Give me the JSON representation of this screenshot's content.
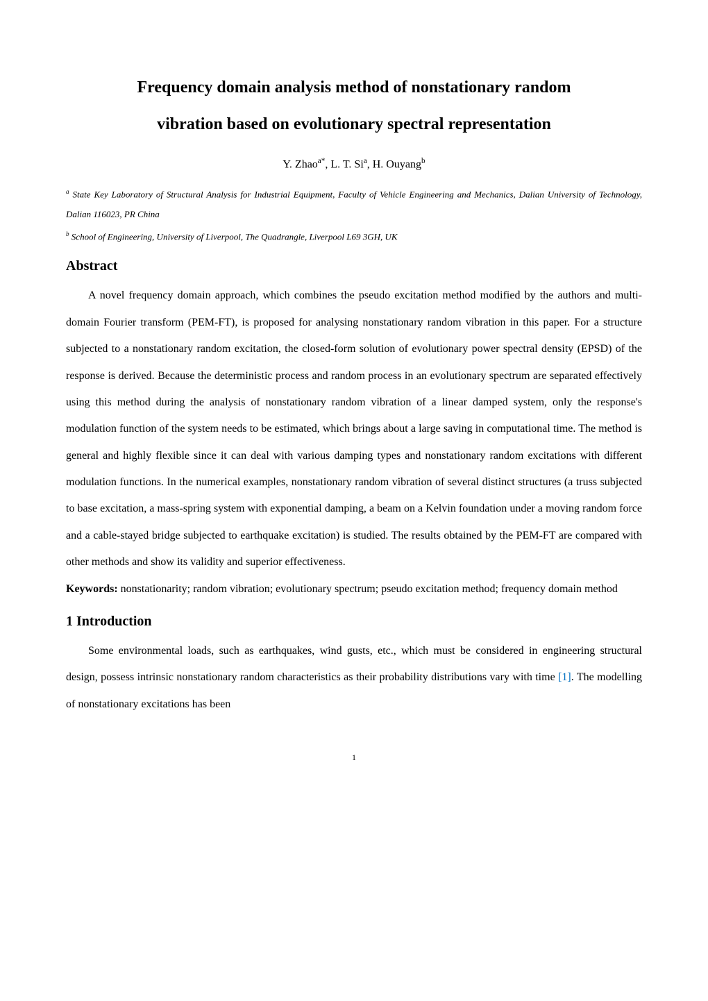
{
  "title": {
    "line1": "Frequency domain analysis method of nonstationary random",
    "line2": "vibration based on evolutionary spectral representation"
  },
  "authors": {
    "a1_name": "Y. Zhao",
    "a1_sup": "a*",
    "a2_name": ", L. T. Si",
    "a2_sup": "a",
    "a3_name": ", H. Ouyang",
    "a3_sup": "b"
  },
  "affiliations": {
    "a_sup": "a",
    "a_text": " State Key Laboratory of Structural Analysis for Industrial Equipment, Faculty of Vehicle Engineering and Mechanics, Dalian University of Technology, Dalian 116023, PR China",
    "b_sup": "b",
    "b_text": " School of Engineering, University of Liverpool, The Quadrangle, Liverpool L69 3GH, UK"
  },
  "abstract": {
    "heading": "Abstract",
    "text": "A novel frequency domain approach, which combines the pseudo excitation method modified by the authors and multi-domain Fourier transform (PEM-FT), is proposed for analysing nonstationary random vibration in this paper. For a structure subjected to a nonstationary random excitation, the closed-form solution of evolutionary power spectral density (EPSD) of the response is derived. Because the deterministic process and random process in an evolutionary spectrum are separated effectively using this method during the analysis of nonstationary random vibration of a linear damped system, only the response's modulation function of the system needs to be estimated, which brings about a large saving in computational time. The method is general and highly flexible since it can deal with various damping types and nonstationary random excitations with different modulation functions. In the numerical examples, nonstationary random vibration of several distinct structures (a truss subjected to base excitation, a mass-spring system with exponential damping, a beam on a Kelvin foundation under a moving random force and a cable-stayed bridge subjected to earthquake excitation) is studied. The results obtained by the PEM-FT are compared with other methods and show its validity and superior effectiveness."
  },
  "keywords": {
    "label": "Keywords: ",
    "text": "nonstationarity; random vibration; evolutionary spectrum; pseudo excitation method; frequency domain method"
  },
  "introduction": {
    "heading": "1 Introduction",
    "text_before_ref": "Some environmental loads, such as earthquakes, wind gusts, etc., which must be considered in engineering structural design, possess intrinsic nonstationary random characteristics as their probability distributions vary with time ",
    "ref": "[1]",
    "text_after_ref": ". The modelling of nonstationary excitations has been"
  },
  "page_number": "1"
}
